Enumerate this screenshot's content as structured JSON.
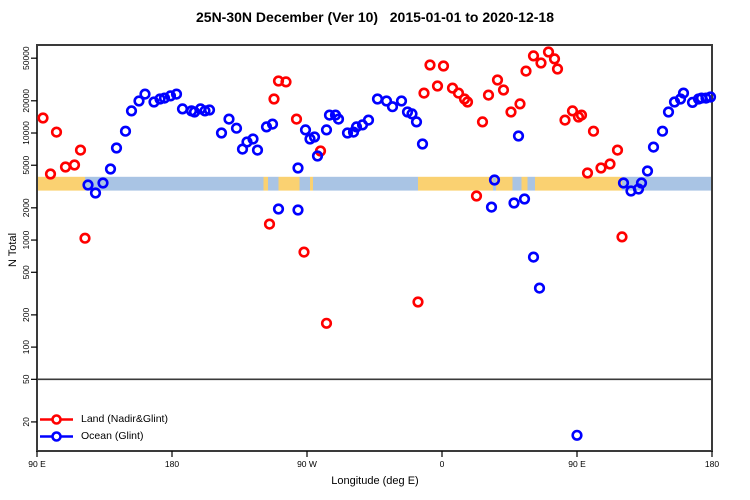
{
  "title": "25N-30N December (Ver 10)   2015-01-01 to 2020-12-18",
  "chart_data": {
    "type": "scatter",
    "title": "25N-30N December (Ver 10)   2015-01-01 to 2020-12-18",
    "xlabel": "Longitude (deg E)",
    "ylabel": "N Total",
    "x_axis": {
      "lim": [
        90,
        540
      ],
      "ticks": [
        {
          "value": 90,
          "label": "90 E"
        },
        {
          "value": 180,
          "label": "180"
        },
        {
          "value": 270,
          "label": "90 W"
        },
        {
          "value": 360,
          "label": "0"
        },
        {
          "value": 450,
          "label": "90 E"
        },
        {
          "value": 540,
          "label": "180"
        }
      ],
      "note": "longitude axis wraps: 90E eastward through 180, 90W, 0, 90E to 180"
    },
    "y_axis": {
      "scale": "log",
      "lim": [
        10.7,
        66400
      ],
      "ticks": [
        20,
        50,
        100,
        200,
        500,
        1000,
        2000,
        5000,
        10000,
        20000,
        50000
      ]
    },
    "grid": false,
    "reference_line_y": 50,
    "map_band": {
      "description": "25N-30N world-map strip drawn across the plot",
      "n_range": [
        2900,
        3900
      ],
      "land_color": "#fad171",
      "ocean_color": "#a9c4e4",
      "segments": [
        {
          "type": "land",
          "from": 90,
          "to": 122
        },
        {
          "type": "ocean",
          "from": 122,
          "to": 241
        },
        {
          "type": "land",
          "from": 241,
          "to": 244
        },
        {
          "type": "ocean",
          "from": 244,
          "to": 251
        },
        {
          "type": "land",
          "from": 251,
          "to": 265
        },
        {
          "type": "ocean",
          "from": 265,
          "to": 272
        },
        {
          "type": "land",
          "from": 272,
          "to": 274
        },
        {
          "type": "ocean",
          "from": 274,
          "to": 344
        },
        {
          "type": "land",
          "from": 344,
          "to": 394
        },
        {
          "type": "ocean",
          "from": 394,
          "to": 396
        },
        {
          "type": "land",
          "from": 396,
          "to": 407
        },
        {
          "type": "ocean",
          "from": 407,
          "to": 413
        },
        {
          "type": "land",
          "from": 413,
          "to": 417
        },
        {
          "type": "ocean",
          "from": 417,
          "to": 422
        },
        {
          "type": "land",
          "from": 422,
          "to": 480
        },
        {
          "type": "ocean",
          "from": 480,
          "to": 540
        }
      ]
    },
    "legend": {
      "position": "bottom-left"
    },
    "series": [
      {
        "name": "Land (Nadir&Glint)",
        "color": "#ff0000",
        "marker": "open-circle",
        "points": [
          [
            94,
            13800
          ],
          [
            99,
            4140
          ],
          [
            103,
            10200
          ],
          [
            109,
            4810
          ],
          [
            115,
            5020
          ],
          [
            119,
            6930
          ],
          [
            122,
            1040
          ],
          [
            245,
            1410
          ],
          [
            248,
            20800
          ],
          [
            251,
            30600
          ],
          [
            256,
            30000
          ],
          [
            263,
            13500
          ],
          [
            268,
            772
          ],
          [
            279,
            6790
          ],
          [
            283,
            167
          ],
          [
            344,
            264
          ],
          [
            348,
            23600
          ],
          [
            352,
            43200
          ],
          [
            357,
            27500
          ],
          [
            361,
            42300
          ],
          [
            367,
            26300
          ],
          [
            371,
            23600
          ],
          [
            375,
            20800
          ],
          [
            377,
            19500
          ],
          [
            383,
            2580
          ],
          [
            387,
            12700
          ],
          [
            391,
            22600
          ],
          [
            397,
            31300
          ],
          [
            401,
            25200
          ],
          [
            406,
            15700
          ],
          [
            412,
            18700
          ],
          [
            416,
            37900
          ],
          [
            421,
            52500
          ],
          [
            426,
            45100
          ],
          [
            431,
            57100
          ],
          [
            435,
            49200
          ],
          [
            437,
            39600
          ],
          [
            442,
            13200
          ],
          [
            447,
            16100
          ],
          [
            451,
            14100
          ],
          [
            453,
            14700
          ],
          [
            457,
            4230
          ],
          [
            461,
            10400
          ],
          [
            466,
            4710
          ],
          [
            472,
            5130
          ],
          [
            477,
            6930
          ],
          [
            480,
            1070
          ]
        ]
      },
      {
        "name": "Ocean (Glint)",
        "color": "#0000ff",
        "marker": "open-circle",
        "points": [
          [
            124,
            3270
          ],
          [
            129,
            2750
          ],
          [
            134,
            3410
          ],
          [
            139,
            4610
          ],
          [
            143,
            7240
          ],
          [
            149,
            10400
          ],
          [
            153,
            16100
          ],
          [
            158,
            19900
          ],
          [
            162,
            23100
          ],
          [
            168,
            19500
          ],
          [
            172,
            20800
          ],
          [
            175,
            21200
          ],
          [
            179,
            22200
          ],
          [
            183,
            23100
          ],
          [
            187,
            16800
          ],
          [
            193,
            16100
          ],
          [
            195,
            15700
          ],
          [
            199,
            16800
          ],
          [
            202,
            16100
          ],
          [
            205,
            16400
          ],
          [
            213,
            10000
          ],
          [
            218,
            13500
          ],
          [
            223,
            11100
          ],
          [
            227,
            7080
          ],
          [
            230,
            8240
          ],
          [
            234,
            8790
          ],
          [
            237,
            6930
          ],
          [
            243,
            11400
          ],
          [
            247,
            12100
          ],
          [
            251,
            1950
          ],
          [
            264,
            4710
          ],
          [
            264,
            1910
          ],
          [
            269,
            10700
          ],
          [
            272,
            8790
          ],
          [
            275,
            9170
          ],
          [
            277,
            6100
          ],
          [
            283,
            10700
          ],
          [
            285,
            14700
          ],
          [
            289,
            14700
          ],
          [
            291,
            13500
          ],
          [
            297,
            10000
          ],
          [
            301,
            10200
          ],
          [
            303,
            11400
          ],
          [
            307,
            11900
          ],
          [
            311,
            13200
          ],
          [
            317,
            20800
          ],
          [
            323,
            19900
          ],
          [
            327,
            17600
          ],
          [
            333,
            19900
          ],
          [
            337,
            15700
          ],
          [
            340,
            15100
          ],
          [
            343,
            12700
          ],
          [
            347,
            7890
          ],
          [
            393,
            2030
          ],
          [
            395,
            3640
          ],
          [
            408,
            2220
          ],
          [
            411,
            9370
          ],
          [
            415,
            2420
          ],
          [
            421,
            693
          ],
          [
            425,
            356
          ],
          [
            450,
            15
          ],
          [
            481,
            3410
          ],
          [
            486,
            2870
          ],
          [
            491,
            3000
          ],
          [
            493,
            3410
          ],
          [
            497,
            4420
          ],
          [
            501,
            7390
          ],
          [
            507,
            10400
          ],
          [
            511,
            15700
          ],
          [
            515,
            19500
          ],
          [
            519,
            20800
          ],
          [
            521,
            23600
          ],
          [
            527,
            19300
          ],
          [
            531,
            20800
          ],
          [
            533,
            21200
          ],
          [
            536,
            21200
          ],
          [
            539,
            21700
          ]
        ]
      }
    ],
    "style": {
      "marker_radius": 4.3,
      "marker_stroke_width": 2.6,
      "axis_color": "#3a3a3a",
      "tick_color": "#000000"
    }
  }
}
